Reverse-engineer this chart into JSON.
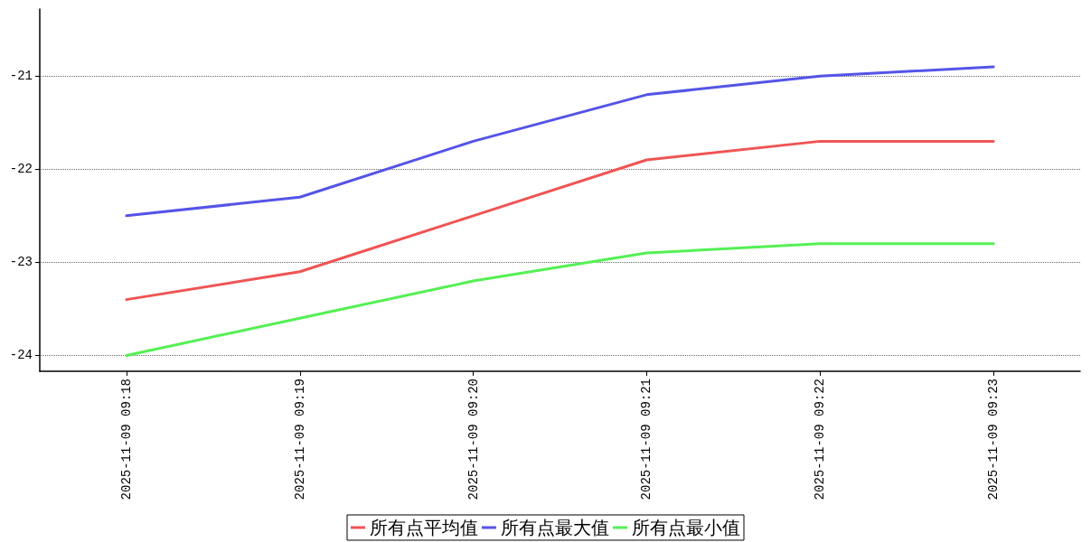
{
  "chart_data": {
    "type": "line",
    "categories": [
      "2025-11-09 09:18",
      "2025-11-09 09:19",
      "2025-11-09 09:20",
      "2025-11-09 09:21",
      "2025-11-09 09:22",
      "2025-11-09 09:23"
    ],
    "series": [
      {
        "name": "所有点平均值",
        "color": "#f05454",
        "values": [
          -23.4,
          -23.1,
          -22.5,
          -21.9,
          -21.7,
          -21.7
        ]
      },
      {
        "name": "所有点最大值",
        "color": "#5454e8",
        "values": [
          -22.5,
          -22.3,
          -21.7,
          -21.2,
          -21.0,
          -20.9
        ]
      },
      {
        "name": "所有点最小值",
        "color": "#54f054",
        "values": [
          -24.0,
          -23.6,
          -23.2,
          -22.9,
          -22.8,
          -22.8
        ]
      }
    ],
    "ylim": [
      -24.17,
      -20.28
    ],
    "yticks": [
      -24,
      -23,
      -22,
      -21
    ],
    "grid": "y",
    "legend": "bottom",
    "marker": "none",
    "line_style": "solid"
  }
}
